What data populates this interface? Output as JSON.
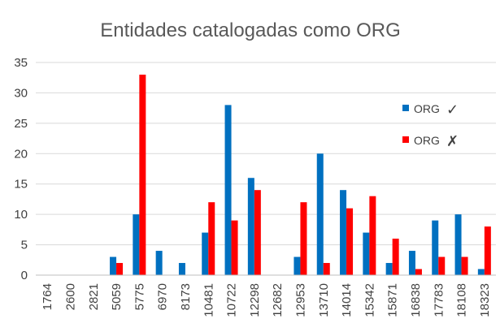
{
  "chart_data": {
    "type": "bar",
    "title": "Entidades catalogadas como ORG",
    "xlabel": "",
    "ylabel": "",
    "ylim": [
      0,
      35
    ],
    "yticks": [
      0,
      5,
      10,
      15,
      20,
      25,
      30,
      35
    ],
    "grid": true,
    "legend_position": "right",
    "categories": [
      "1764",
      "2600",
      "2821",
      "5059",
      "5775",
      "6970",
      "8173",
      "10481",
      "10722",
      "12298",
      "12682",
      "12953",
      "13710",
      "14014",
      "15342",
      "15871",
      "16838",
      "17783",
      "18108",
      "18323"
    ],
    "series": [
      {
        "name": "ORG",
        "mark": "✓",
        "color": "#0070C0",
        "values": [
          0,
          0,
          0,
          3,
          10,
          4,
          2,
          7,
          28,
          16,
          0,
          3,
          20,
          14,
          7,
          2,
          4,
          9,
          10,
          1
        ]
      },
      {
        "name": "ORG",
        "mark": "✗",
        "color": "#FF0000",
        "values": [
          0,
          0,
          0,
          2,
          33,
          0,
          0,
          12,
          9,
          14,
          0,
          12,
          2,
          11,
          13,
          6,
          1,
          3,
          3,
          8
        ]
      }
    ]
  }
}
